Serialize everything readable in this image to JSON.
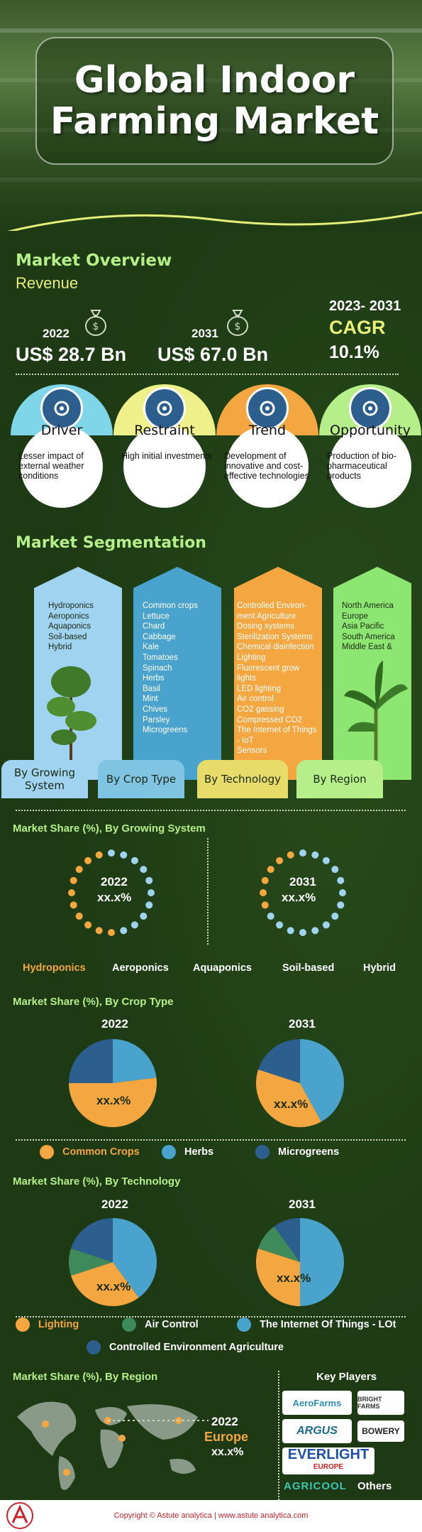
{
  "header": {
    "title": "Global Indoor\nFarming Market"
  },
  "overview": {
    "heading": "Market Overview",
    "subheading": "Revenue",
    "year_a": "2022",
    "value_a": "US$ 28.7 Bn",
    "year_b": "2031",
    "value_b": "US$ 67.0 Bn",
    "cagr_period": "2023- 2031",
    "cagr_label": "CAGR",
    "cagr_value": "10.1%"
  },
  "factors": [
    {
      "label": "Driver",
      "desc": "Lesser impact of external weather conditions",
      "color": "#7fd6e8",
      "icon": "gears-icon"
    },
    {
      "label": "Restraint",
      "desc": "High initial investments",
      "color": "#eef08a",
      "icon": "chain-link-icon"
    },
    {
      "label": "Trend",
      "desc": "Development of innovative and cost-effective technologies",
      "color": "#f4a640",
      "icon": "growth-chart-icon"
    },
    {
      "label": "Opportunity",
      "desc": "Production of bio-pharmaceutical products",
      "color": "#b6ef8a",
      "icon": "trophy-icon"
    }
  ],
  "segmentation": {
    "heading": "Market Segmentation",
    "growing": {
      "tab": "By Growing System",
      "items": [
        "Hydroponics",
        "Aeroponics",
        "Aquaponics",
        "Soil-based",
        "Hybrid"
      ],
      "color": "#9fd3ef"
    },
    "crop": {
      "tab": "By Crop Type",
      "items": [
        "Common crops",
        "Lettuce",
        "Chard",
        "Cabbage",
        "Kale",
        "Tomatoes",
        "Spinach",
        "Herbs",
        "Basil",
        "Mint",
        "Chives",
        "Parsley",
        "Microgreens"
      ],
      "color": "#4aa3cc"
    },
    "technology": {
      "tab": "By Technology",
      "items": [
        "Controlled Environ-",
        "ment Agriculture",
        "Dosing systems",
        "Sterilization Systems",
        "Chemical disinfection",
        "Lighting",
        "Fluorescent grow",
        "lights",
        "LED lighting",
        "Air control",
        "CO2 gassing",
        "Compressed CO2",
        "The Internet of Things",
        "- IoT",
        "Sensors"
      ],
      "color": "#f4a640"
    },
    "region": {
      "tab": "By Region",
      "items": [
        "North America",
        "Europe",
        "Asia Pacific",
        "South America",
        "Middle East &"
      ],
      "color": "#8ee672"
    }
  },
  "growing_share": {
    "title": "Market Share (%), By Growing System",
    "y1": "2022",
    "v1": "xx.x%",
    "y2": "2031",
    "v2": "xx.x%",
    "legend": [
      "Hydroponics",
      "Aeroponics",
      "Aquaponics",
      "Soil-based",
      "Hybrid"
    ],
    "highlight_color": "#f4a640"
  },
  "crop_share": {
    "title": "Market Share (%), By Crop Type",
    "y1": "2022",
    "y2": "2031",
    "v1": "xx.x%",
    "v2": "xx.x%",
    "legend": [
      "Common Crops",
      "Herbs",
      "Microgreens"
    ],
    "colors": [
      "#f4a640",
      "#4aa3cc",
      "#2c5f8e"
    ]
  },
  "tech_share": {
    "title": "Market Share (%), By Technology",
    "y1": "2022",
    "y2": "2031",
    "v1": "xx.x%",
    "v2": "xx.x%",
    "legend": [
      "Lighting",
      "Air Control",
      "The Internet Of Things - LOt",
      "Controlled Environment Agriculture"
    ],
    "colors": [
      "#f4a640",
      "#3f8a5a",
      "#4aa3cc",
      "#2c5f8e"
    ]
  },
  "region_share": {
    "title": "Market Share (%), By Region",
    "year": "2022",
    "region": "Europe",
    "value": "xx.x%"
  },
  "key_players": {
    "heading": "Key Players",
    "logos": [
      "AeroFarms",
      "BRIGHT FARMS",
      "ARGUS",
      "BOWERY",
      "EVERLIGHT",
      "EUROPE",
      "AGRICOOL"
    ],
    "others": "Others"
  },
  "footer": {
    "text": "Copyright © Astute analytica | www.astute analytica.com",
    "logo_text": "ASTUTE ANALYTICA"
  }
}
